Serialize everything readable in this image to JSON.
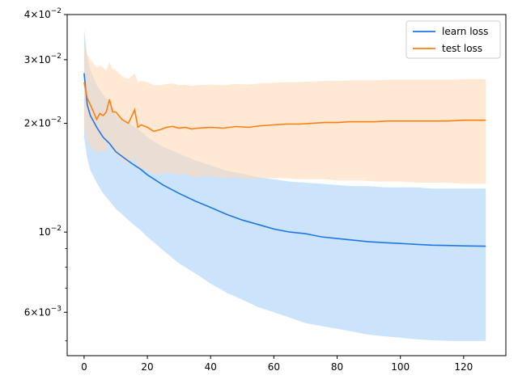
{
  "chart_data": {
    "type": "line",
    "title": "",
    "xlabel": "",
    "ylabel": "",
    "xlim": [
      -5.35,
      133.35
    ],
    "ylim": [
      0.00455,
      0.04
    ],
    "yscale": "log",
    "grid": false,
    "legend_position": "top-right",
    "x_ticks": [
      {
        "value": 0,
        "label": "0"
      },
      {
        "value": 20,
        "label": "20"
      },
      {
        "value": 40,
        "label": "40"
      },
      {
        "value": 60,
        "label": "60"
      },
      {
        "value": 80,
        "label": "80"
      },
      {
        "value": 100,
        "label": "100"
      },
      {
        "value": 120,
        "label": "120"
      }
    ],
    "y_ticks": [
      {
        "value": 0.006,
        "label": "6×10",
        "exp": "−3"
      },
      {
        "value": 0.01,
        "label": "10",
        "exp": "−2"
      },
      {
        "value": 0.02,
        "label": "2×10",
        "exp": "−2"
      },
      {
        "value": 0.03,
        "label": "3×10",
        "exp": "−2"
      },
      {
        "value": 0.04,
        "label": "4×10",
        "exp": "−2"
      }
    ],
    "y_minor_ticks": [
      0.005,
      0.007,
      0.008,
      0.009
    ],
    "series": [
      {
        "name": "learn loss",
        "color": "#1f77e6",
        "band_color": "#b9dbfb",
        "x": [
          0,
          1,
          2,
          4,
          6,
          8,
          10,
          12,
          15,
          18,
          20,
          25,
          30,
          35,
          40,
          45,
          50,
          55,
          60,
          65,
          70,
          75,
          80,
          85,
          90,
          95,
          100,
          105,
          110,
          115,
          120,
          127
        ],
        "y": [
          0.0275,
          0.0225,
          0.021,
          0.0195,
          0.0183,
          0.0176,
          0.0167,
          0.0162,
          0.0155,
          0.0149,
          0.0144,
          0.0135,
          0.0128,
          0.0122,
          0.0117,
          0.0112,
          0.0108,
          0.0105,
          0.0102,
          0.01,
          0.0099,
          0.0097,
          0.0096,
          0.0095,
          0.0094,
          0.00935,
          0.0093,
          0.00925,
          0.0092,
          0.00918,
          0.00916,
          0.00914
        ],
        "upper": [
          0.0365,
          0.0305,
          0.028,
          0.0255,
          0.024,
          0.023,
          0.021,
          0.0205,
          0.0198,
          0.019,
          0.0183,
          0.0172,
          0.0165,
          0.0158,
          0.0153,
          0.0148,
          0.0145,
          0.0142,
          0.014,
          0.0138,
          0.0137,
          0.0136,
          0.0135,
          0.0134,
          0.0134,
          0.0133,
          0.0133,
          0.0133,
          0.0132,
          0.0132,
          0.0132,
          0.0132
        ],
        "lower": [
          0.0183,
          0.016,
          0.0148,
          0.0137,
          0.0128,
          0.0122,
          0.0116,
          0.0112,
          0.0106,
          0.0101,
          0.0097,
          0.0089,
          0.0082,
          0.0077,
          0.0072,
          0.0068,
          0.0065,
          0.0062,
          0.006,
          0.0058,
          0.0056,
          0.0055,
          0.0054,
          0.0053,
          0.0052,
          0.00515,
          0.0051,
          0.00505,
          0.00502,
          0.005,
          0.005,
          0.005
        ]
      },
      {
        "name": "test loss",
        "color": "#ff7f0e",
        "band_color": "#ffd9b7",
        "x": [
          0,
          1,
          2,
          4,
          5,
          6,
          7,
          8,
          9,
          10,
          12,
          14,
          16,
          17,
          18,
          20,
          22,
          24,
          26,
          28,
          30,
          32,
          34,
          36,
          40,
          44,
          48,
          52,
          56,
          60,
          64,
          68,
          72,
          76,
          80,
          84,
          88,
          92,
          96,
          100,
          105,
          110,
          115,
          120,
          127
        ],
        "y": [
          0.026,
          0.0235,
          0.0225,
          0.0205,
          0.0213,
          0.021,
          0.0215,
          0.0233,
          0.0215,
          0.0215,
          0.0205,
          0.02,
          0.0218,
          0.0195,
          0.0198,
          0.0195,
          0.019,
          0.0192,
          0.0195,
          0.0196,
          0.0194,
          0.0195,
          0.0193,
          0.0194,
          0.0195,
          0.0194,
          0.0196,
          0.0195,
          0.0197,
          0.0198,
          0.0199,
          0.0199,
          0.02,
          0.0201,
          0.0201,
          0.0202,
          0.0202,
          0.0202,
          0.0203,
          0.0203,
          0.0203,
          0.0203,
          0.0203,
          0.0204,
          0.0204
        ],
        "upper": [
          0.033,
          0.031,
          0.03,
          0.0285,
          0.029,
          0.0285,
          0.028,
          0.0295,
          0.0283,
          0.028,
          0.027,
          0.0265,
          0.0275,
          0.026,
          0.0262,
          0.026,
          0.0255,
          0.0255,
          0.0257,
          0.0258,
          0.0255,
          0.0256,
          0.0254,
          0.0255,
          0.0256,
          0.0255,
          0.0257,
          0.0256,
          0.0258,
          0.0259,
          0.026,
          0.026,
          0.0261,
          0.0262,
          0.0262,
          0.0263,
          0.0263,
          0.0263,
          0.0264,
          0.0264,
          0.0264,
          0.0264,
          0.0264,
          0.0265,
          0.0265
        ],
        "lower": [
          0.0195,
          0.018,
          0.0172,
          0.0165,
          0.0168,
          0.0166,
          0.0168,
          0.0178,
          0.0166,
          0.0165,
          0.0158,
          0.0153,
          0.0162,
          0.0148,
          0.015,
          0.0148,
          0.0145,
          0.0145,
          0.0146,
          0.0146,
          0.0144,
          0.0145,
          0.0142,
          0.0142,
          0.0143,
          0.0141,
          0.0142,
          0.014,
          0.0141,
          0.0141,
          0.0141,
          0.014,
          0.014,
          0.014,
          0.0139,
          0.0139,
          0.0139,
          0.0138,
          0.0138,
          0.0138,
          0.0137,
          0.0137,
          0.0137,
          0.0136,
          0.0136
        ]
      }
    ]
  }
}
